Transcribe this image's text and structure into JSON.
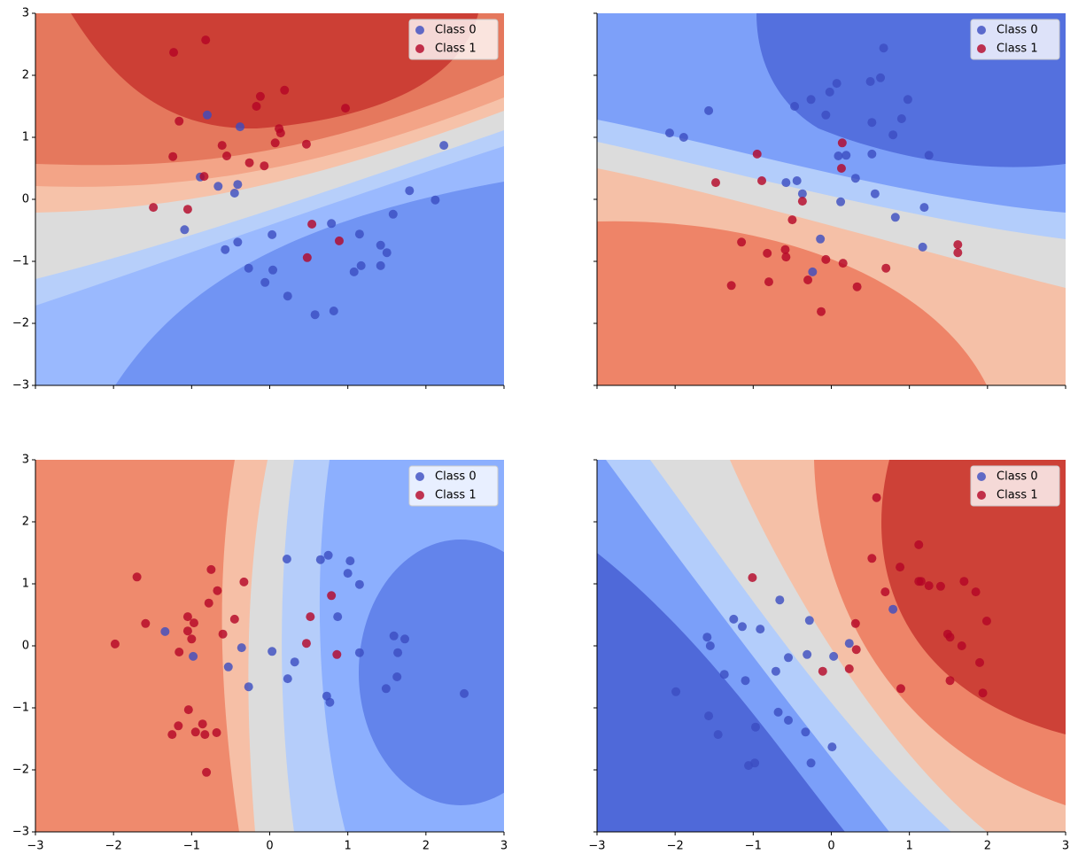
{
  "chart_data": [
    {
      "type": "scatter",
      "legend": "upper right",
      "xlim": [
        -3,
        3
      ],
      "ylim": [
        -3,
        3
      ],
      "xticks": [
        -3,
        -2,
        -1,
        0,
        1,
        2,
        3
      ],
      "yticks": [
        {
          "value": -3,
          "label": "−3"
        },
        {
          "value": -2,
          "label": "−2"
        },
        {
          "value": -1,
          "label": "−1"
        },
        0,
        1,
        2,
        3
      ],
      "series": [
        {
          "name": "Class 0",
          "color": "#3b4cc0",
          "x": [
            -0.8,
            -0.38,
            -0.89,
            -0.66,
            -0.41,
            -0.45,
            -1.09,
            -0.57,
            -0.41,
            0.03,
            -0.27,
            0.04,
            -0.06,
            0.23,
            0.58,
            0.82,
            0.79,
            1.15,
            1.17,
            1.08,
            1.42,
            1.5,
            1.42,
            1.58,
            1.79,
            2.12,
            2.23
          ],
          "y": [
            1.36,
            1.17,
            0.36,
            0.21,
            0.24,
            0.1,
            -0.49,
            -0.81,
            -0.69,
            -0.57,
            -1.11,
            -1.14,
            -1.34,
            -1.56,
            -1.86,
            -1.8,
            -0.39,
            -0.56,
            -1.07,
            -1.17,
            -0.74,
            -0.86,
            -1.07,
            -0.24,
            0.14,
            -0.01,
            0.87
          ]
        },
        {
          "name": "Class 1",
          "color": "#b40426",
          "x": [
            -0.82,
            -1.23,
            -1.16,
            -1.24,
            -0.84,
            -1.49,
            -1.05,
            -0.61,
            -0.55,
            -0.26,
            -0.07,
            -0.12,
            -0.17,
            0.19,
            0.12,
            0.14,
            0.07,
            0.47,
            0.97,
            0.54,
            0.89,
            0.48
          ],
          "y": [
            2.57,
            2.37,
            1.26,
            0.69,
            0.37,
            -0.13,
            -0.16,
            0.87,
            0.7,
            0.59,
            0.54,
            1.66,
            1.5,
            1.76,
            1.14,
            1.07,
            0.91,
            0.89,
            1.47,
            -0.4,
            -0.67,
            -0.94
          ]
        }
      ]
    },
    {
      "type": "scatter",
      "legend": "upper right",
      "xlim": [
        -3,
        3
      ],
      "ylim": [
        -3,
        3
      ],
      "xticks": [
        -3,
        -2,
        -1,
        0,
        1,
        2,
        3
      ],
      "yticks": [
        -3,
        -2,
        -1,
        0,
        1,
        2,
        3
      ],
      "series": [
        {
          "name": "Class 0",
          "color": "#3b4cc0",
          "x": [
            0.67,
            0.63,
            0.5,
            0.07,
            -0.02,
            -0.26,
            0.98,
            -0.47,
            -0.07,
            0.52,
            0.9,
            0.79,
            -1.57,
            -2.07,
            -1.89,
            0.19,
            0.52,
            1.25,
            0.09,
            0.31,
            -0.44,
            -0.58,
            -0.37,
            0.56,
            0.12,
            0.82,
            1.19,
            1.17,
            -0.14,
            -0.24
          ],
          "y": [
            2.44,
            1.96,
            1.9,
            1.87,
            1.73,
            1.61,
            1.61,
            1.5,
            1.36,
            1.24,
            1.3,
            1.04,
            1.43,
            1.07,
            1.0,
            0.71,
            0.73,
            0.71,
            0.7,
            0.34,
            0.3,
            0.27,
            0.09,
            0.09,
            -0.04,
            -0.29,
            -0.13,
            -0.77,
            -0.64,
            -1.17
          ]
        },
        {
          "name": "Class 1",
          "color": "#b40426",
          "x": [
            0.14,
            0.13,
            -0.95,
            -0.89,
            -1.48,
            -0.37,
            -0.5,
            -1.15,
            -0.59,
            -0.82,
            -0.58,
            -0.07,
            0.15,
            0.7,
            -0.8,
            -1.28,
            -0.3,
            0.33,
            -0.13,
            1.62,
            1.62
          ],
          "y": [
            0.91,
            0.5,
            0.73,
            0.3,
            0.27,
            -0.03,
            -0.33,
            -0.69,
            -0.81,
            -0.87,
            -0.93,
            -0.97,
            -1.03,
            -1.11,
            -1.33,
            -1.39,
            -1.3,
            -1.41,
            -1.81,
            -0.73,
            -0.86
          ]
        }
      ]
    },
    {
      "type": "scatter",
      "legend": "upper right",
      "xlim": [
        -3,
        3
      ],
      "ylim": [
        -3,
        3
      ],
      "xticks": [
        {
          "value": -3,
          "label": "−3"
        },
        {
          "value": -2,
          "label": "−2"
        },
        {
          "value": -1,
          "label": "−1"
        },
        0,
        1,
        2,
        3
      ],
      "yticks": [
        {
          "value": -3,
          "label": "−3"
        },
        {
          "value": -2,
          "label": "−2"
        },
        {
          "value": -1,
          "label": "−1"
        },
        0,
        1,
        2,
        3
      ],
      "series": [
        {
          "name": "Class 0",
          "color": "#3b4cc0",
          "x": [
            0.22,
            0.65,
            0.75,
            1.03,
            1.0,
            1.15,
            0.87,
            -1.34,
            1.59,
            1.73,
            -0.98,
            -0.36,
            0.03,
            1.15,
            1.64,
            0.32,
            -0.53,
            0.23,
            1.63,
            -0.27,
            1.49,
            2.49,
            0.73,
            0.77
          ],
          "y": [
            1.4,
            1.39,
            1.46,
            1.37,
            1.17,
            0.99,
            0.47,
            0.23,
            0.16,
            0.11,
            -0.17,
            -0.03,
            -0.09,
            -0.11,
            -0.11,
            -0.26,
            -0.34,
            -0.53,
            -0.5,
            -0.66,
            -0.69,
            -0.77,
            -0.81,
            -0.91
          ]
        },
        {
          "name": "Class 1",
          "color": "#b40426",
          "x": [
            -1.7,
            -0.75,
            -0.33,
            -0.67,
            -0.78,
            -1.59,
            -1.05,
            -0.97,
            -1.05,
            -1.0,
            -0.45,
            -0.6,
            -1.98,
            -1.16,
            0.79,
            0.52,
            0.47,
            0.86,
            -1.04,
            -1.17,
            -1.25,
            -0.95,
            -0.86,
            -0.83,
            -0.68,
            -0.81
          ],
          "y": [
            1.11,
            1.23,
            1.03,
            0.89,
            0.69,
            0.36,
            0.47,
            0.37,
            0.24,
            0.11,
            0.43,
            0.19,
            0.03,
            -0.1,
            0.81,
            0.47,
            0.04,
            -0.14,
            -1.03,
            -1.29,
            -1.43,
            -1.39,
            -1.26,
            -1.43,
            -1.4,
            -2.04
          ]
        }
      ]
    },
    {
      "type": "scatter",
      "legend": "upper right",
      "xlim": [
        -3,
        3
      ],
      "ylim": [
        -3,
        3
      ],
      "xticks": [
        {
          "value": -3,
          "label": "−3"
        },
        {
          "value": -2,
          "label": "−2"
        },
        {
          "value": -1,
          "label": "−1"
        },
        0,
        1,
        2,
        3
      ],
      "yticks": [
        -3,
        -2,
        -1,
        0,
        1,
        2,
        3
      ],
      "series": [
        {
          "name": "Class 0",
          "color": "#3b4cc0",
          "x": [
            -0.66,
            -1.25,
            -1.14,
            -0.91,
            -0.28,
            -1.59,
            -1.55,
            -1.37,
            -1.1,
            -0.71,
            -0.55,
            -0.31,
            0.03,
            0.23,
            0.79,
            -1.99,
            -1.57,
            -1.45,
            -0.68,
            -0.55,
            -0.97,
            -0.33,
            0.01,
            -0.26,
            -0.98,
            -1.06
          ],
          "y": [
            0.74,
            0.43,
            0.31,
            0.27,
            0.41,
            0.14,
            0.0,
            -0.46,
            -0.56,
            -0.41,
            -0.19,
            -0.14,
            -0.17,
            0.04,
            0.59,
            -0.74,
            -1.13,
            -1.43,
            -1.07,
            -1.2,
            -1.31,
            -1.39,
            -1.63,
            -1.89,
            -1.89,
            -1.93
          ]
        },
        {
          "name": "Class 1",
          "color": "#b40426",
          "x": [
            -1.01,
            0.58,
            1.12,
            0.88,
            0.52,
            0.69,
            1.12,
            1.15,
            1.25,
            1.4,
            1.7,
            1.85,
            1.99,
            1.49,
            1.52,
            1.67,
            1.9,
            1.94,
            1.52,
            0.31,
            0.32,
            0.23,
            -0.11,
            0.89
          ],
          "y": [
            1.1,
            2.39,
            1.63,
            1.27,
            1.41,
            0.87,
            1.04,
            1.04,
            0.97,
            0.96,
            1.04,
            0.87,
            0.4,
            0.19,
            0.14,
            0.0,
            -0.27,
            -0.76,
            -0.56,
            0.36,
            -0.06,
            -0.37,
            -0.41,
            -0.69
          ]
        }
      ]
    }
  ]
}
